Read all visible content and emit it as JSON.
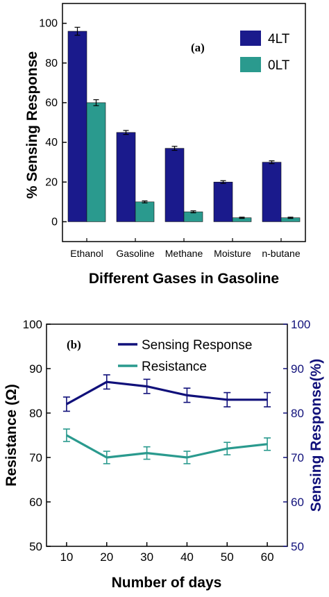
{
  "colors": {
    "series_4lt": "#1a1a8c",
    "series_0lt": "#2a9a8e",
    "sensing_line": "#10107a",
    "resistance_line": "#2a9a8e",
    "right_axis": "#10107a"
  },
  "chart_data": [
    {
      "type": "bar",
      "panel_label": "(a)",
      "title": "",
      "xlabel": "Different Gases in Gasoline",
      "ylabel": "% Sensing Response",
      "categories": [
        "Ethanol",
        "Gasoline",
        "Methane",
        "Moisture",
        "n-butane"
      ],
      "ylim": [
        -10,
        110
      ],
      "yticks": [
        "0",
        "20",
        "40",
        "60",
        "80",
        "100"
      ],
      "legend_position": "top-right",
      "grid": false,
      "series": [
        {
          "name": "4LT",
          "values": [
            96,
            45,
            37,
            20,
            30
          ],
          "errors": [
            2,
            1,
            1,
            0.7,
            0.7
          ]
        },
        {
          "name": "0LT",
          "values": [
            60,
            10,
            5,
            2,
            2
          ],
          "errors": [
            1.5,
            0.5,
            0.5,
            0.3,
            0.3
          ]
        }
      ]
    },
    {
      "type": "line",
      "panel_label": "(b)",
      "title": "",
      "xlabel": "Number of days",
      "ylabel_left": "Resistance (Ω)",
      "ylabel_right": "Sensing Response(%)",
      "x": [
        10,
        20,
        30,
        40,
        50,
        60
      ],
      "xticks": [
        "10",
        "20",
        "30",
        "40",
        "50",
        "60"
      ],
      "xlim": [
        5,
        65
      ],
      "ylim_left": [
        50,
        100
      ],
      "ylim_right": [
        50,
        100
      ],
      "yticks_left": [
        "50",
        "60",
        "70",
        "80",
        "90",
        "100"
      ],
      "yticks_right": [
        "50",
        "60",
        "70",
        "80",
        "90",
        "100"
      ],
      "legend_position": "top-center",
      "grid": false,
      "series": [
        {
          "name": "Sensing Response",
          "axis": "right",
          "values": [
            82,
            87,
            86,
            84,
            83,
            83
          ],
          "error": 1.6
        },
        {
          "name": "Resistance",
          "axis": "left",
          "values": [
            75,
            70,
            71,
            70,
            72,
            73
          ],
          "error": 1.4
        }
      ]
    }
  ]
}
